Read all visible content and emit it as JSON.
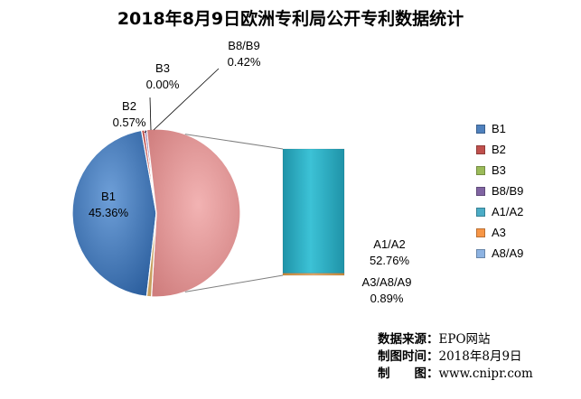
{
  "chart_data": {
    "type": "pie",
    "title": "2018年8月9日欧洲专利局公开专利数据统计",
    "slices": [
      {
        "name": "B1",
        "value": 45.36,
        "label": "45.36%",
        "color": "#4a7fc1"
      },
      {
        "name": "B2",
        "value": 0.57,
        "label": "0.57%",
        "color": "#c0504d"
      },
      {
        "name": "B3",
        "value": 0.0,
        "label": "0.00%",
        "color": "#9bbb59"
      },
      {
        "name": "B8/B9",
        "value": 0.42,
        "label": "0.42%",
        "color": "#8064a2"
      },
      {
        "name": "A1/A2",
        "value": 52.76,
        "label": "52.76%",
        "color": "#e79b9b"
      },
      {
        "name": "A3/A8/A9",
        "value": 0.89,
        "label": "0.89%",
        "color": "#c8a060"
      }
    ],
    "bar_of_pie": {
      "segments": [
        {
          "name": "A1/A2",
          "value": 52.76,
          "color": "#2fb0c6"
        },
        {
          "name": "A3",
          "value": 0.89,
          "color": "#f79646"
        }
      ]
    },
    "legend": [
      "B1",
      "B2",
      "B3",
      "B8/B9",
      "A1/A2",
      "A3",
      "A8/A9"
    ],
    "legend_colors": [
      "#4f81bd",
      "#c0504d",
      "#9bbb59",
      "#8064a2",
      "#4bacc6",
      "#f79646",
      "#8db3e2"
    ],
    "legend_position": "right"
  },
  "source": [
    {
      "key": "数据来源：",
      "value": "EPO网站"
    },
    {
      "key": "制图时间：",
      "value": "2018年8月9日"
    },
    {
      "key": "制　　图：",
      "value": "www.cnipr.com"
    }
  ]
}
